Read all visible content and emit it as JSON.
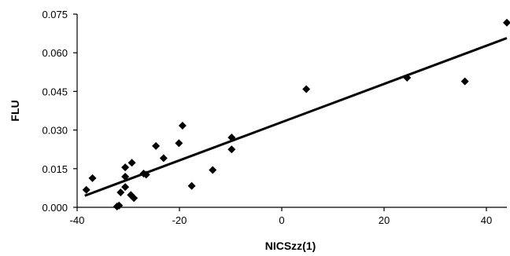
{
  "chart_data": {
    "type": "scatter",
    "title": "",
    "xlabel": "NICSzz(1)",
    "ylabel": "FLU",
    "xlim": [
      -40,
      44
    ],
    "ylim": [
      0.0,
      0.075
    ],
    "xticks": [
      -40,
      -20,
      0,
      20,
      40
    ],
    "yticks": [
      0.0,
      0.015,
      0.03,
      0.045,
      0.06,
      0.075
    ],
    "xtick_labels": [
      "-40",
      "-20",
      "0",
      "20",
      "40"
    ],
    "ytick_labels": [
      "0.000",
      "0.015",
      "0.030",
      "0.045",
      "0.060",
      "0.075"
    ],
    "grid": false,
    "legend": "none",
    "marker": "diamond",
    "points": [
      {
        "x": -38.2,
        "y": 0.0068
      },
      {
        "x": -37.0,
        "y": 0.0113
      },
      {
        "x": -32.2,
        "y": 0.0003
      },
      {
        "x": -31.8,
        "y": 0.0007
      },
      {
        "x": -31.5,
        "y": 0.0058
      },
      {
        "x": -30.6,
        "y": 0.0079
      },
      {
        "x": -30.6,
        "y": 0.0119
      },
      {
        "x": -30.6,
        "y": 0.0155
      },
      {
        "x": -29.5,
        "y": 0.0048
      },
      {
        "x": -29.3,
        "y": 0.0173
      },
      {
        "x": -28.9,
        "y": 0.0036
      },
      {
        "x": -27.0,
        "y": 0.0131
      },
      {
        "x": -26.5,
        "y": 0.0127
      },
      {
        "x": -24.6,
        "y": 0.0238
      },
      {
        "x": -23.1,
        "y": 0.0191
      },
      {
        "x": -20.1,
        "y": 0.0249
      },
      {
        "x": -19.4,
        "y": 0.0317
      },
      {
        "x": -17.6,
        "y": 0.0083
      },
      {
        "x": -13.5,
        "y": 0.0145
      },
      {
        "x": -9.8,
        "y": 0.0271
      },
      {
        "x": -9.8,
        "y": 0.0225
      },
      {
        "x": 4.8,
        "y": 0.0459
      },
      {
        "x": 24.5,
        "y": 0.0503
      },
      {
        "x": 35.8,
        "y": 0.0489
      },
      {
        "x": 44.0,
        "y": 0.0717
      }
    ],
    "trendline": {
      "x": [
        -38.5,
        44.0
      ],
      "y": [
        0.0045,
        0.0657
      ]
    }
  }
}
